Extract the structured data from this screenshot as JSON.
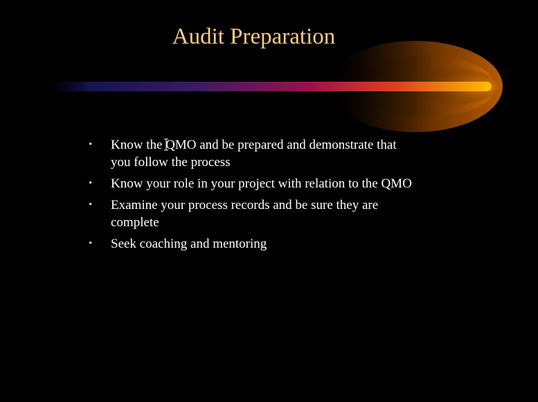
{
  "slide": {
    "title": "Audit Preparation",
    "bullet_glyph": "•",
    "bullets": [
      "Know the QMO and be prepared and demonstrate that you follow the process",
      "Know your role in your project with relation to the QMO",
      "Examine your process records and be sure they are complete",
      "Seek coaching and mentoring"
    ]
  },
  "colors": {
    "background": "#000000",
    "title": "#ffcc88",
    "text": "#ffffff",
    "bullet": "#ffcc88",
    "beam_start": "#1a1a66",
    "beam_mid": "#99114d",
    "beam_end": "#ffaa00",
    "glow": "#cc6600"
  },
  "icons": {
    "cursor": "text-cursor-icon"
  }
}
